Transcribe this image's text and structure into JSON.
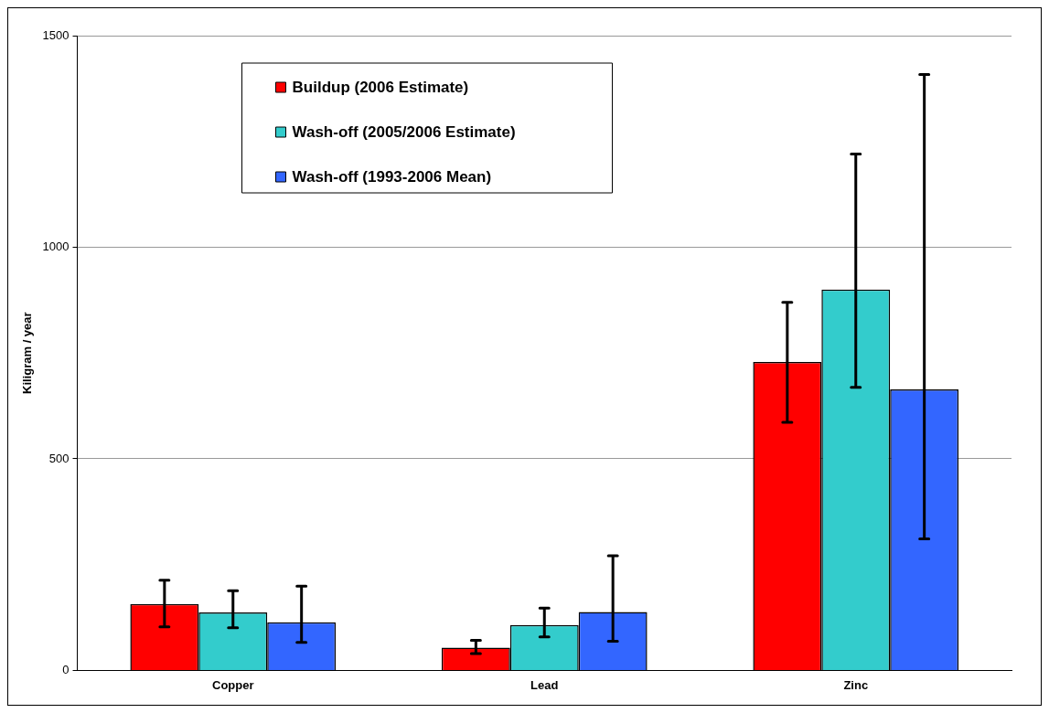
{
  "chart_data": {
    "type": "bar",
    "ylabel": "Kiligram / year",
    "categories": [
      "Copper",
      "Lead",
      "Zinc"
    ],
    "series": [
      {
        "name": "Buildup (2006 Estimate)",
        "color": "#ff0000",
        "values": [
          157,
          54,
          729
        ],
        "errors": [
          [
            103,
            213
          ],
          [
            40,
            71
          ],
          [
            586,
            870
          ]
        ]
      },
      {
        "name": "Wash-off (2005/2006 Estimate)",
        "color": "#33cccc",
        "values": [
          137,
          107,
          900
        ],
        "errors": [
          [
            101,
            188
          ],
          [
            79,
            147
          ],
          [
            669,
            1220
          ]
        ]
      },
      {
        "name": "Wash-off (1993-2006 Mean)",
        "color": "#3366ff",
        "values": [
          114,
          138,
          664
        ],
        "errors": [
          [
            66,
            199
          ],
          [
            69,
            271
          ],
          [
            311,
            1408
          ]
        ]
      }
    ],
    "ylim": [
      0,
      1500
    ],
    "yticks": [
      0,
      500,
      1000,
      1500
    ],
    "grid": "y",
    "legend": "top left"
  }
}
